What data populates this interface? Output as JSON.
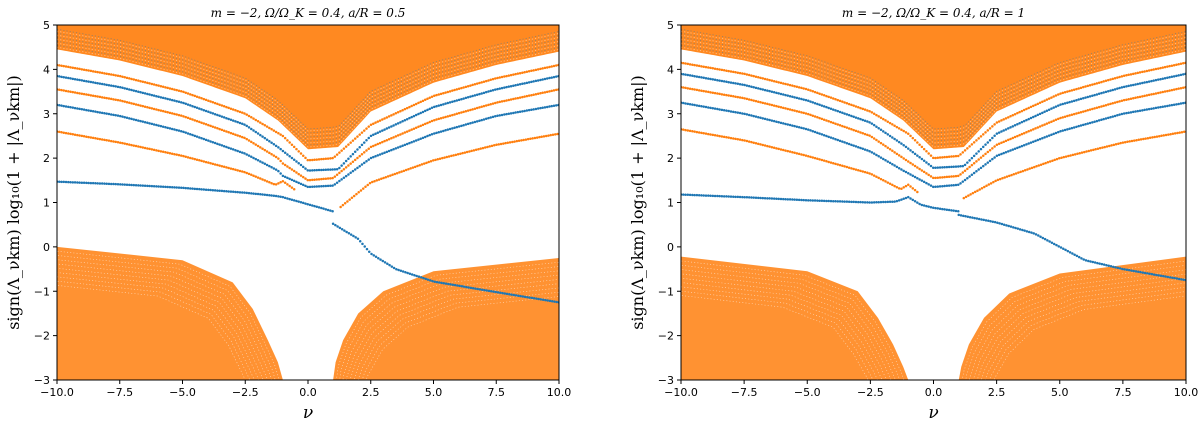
{
  "chart_data": [
    {
      "type": "scatter",
      "title": "m = −2,  Ω/Ω_K = 0.4,  a/R = 0.5",
      "xlabel": "ν",
      "ylabel": "sign(Λ_νkm) log₁₀(1 + |Λ_νkm|)",
      "xlim": [
        -10,
        10
      ],
      "ylim": [
        -3,
        5
      ],
      "xticks": [
        "−10.0",
        "−7.5",
        "−5.0",
        "−2.5",
        "0.0",
        "2.5",
        "5.0",
        "7.5",
        "10.0"
      ],
      "yticks": [
        "−3",
        "−2",
        "−1",
        "0",
        "1",
        "2",
        "3",
        "4",
        "5"
      ],
      "grid": false,
      "colors": {
        "blue": "#1f77b4",
        "orange": "#ff7f0e"
      },
      "series": [
        {
          "color": "#1f77b4",
          "points": [
            [
              -10,
              1.47
            ],
            [
              -7.5,
              1.41
            ],
            [
              -5,
              1.33
            ],
            [
              -2.5,
              1.22
            ],
            [
              -1.3,
              1.15
            ],
            [
              -1,
              1.12
            ],
            [
              0,
              0.96
            ],
            [
              1,
              0.8
            ]
          ]
        },
        {
          "color": "#1f77b4",
          "points": [
            [
              1,
              0.52
            ],
            [
              2,
              0.18
            ],
            [
              2.5,
              -0.15
            ],
            [
              3.5,
              -0.5
            ],
            [
              5,
              -0.78
            ],
            [
              7.5,
              -1.02
            ],
            [
              10,
              -1.25
            ]
          ]
        },
        {
          "color": "#ff7f0e",
          "points": [
            [
              -10,
              2.6
            ],
            [
              -7.5,
              2.35
            ],
            [
              -5,
              2.05
            ],
            [
              -2.5,
              1.68
            ],
            [
              -1.3,
              1.4
            ],
            [
              -1,
              1.48
            ],
            [
              -0.5,
              1.28
            ]
          ]
        },
        {
          "color": "#ff7f0e",
          "points": [
            [
              1.3,
              0.9
            ],
            [
              2.5,
              1.45
            ],
            [
              5,
              1.95
            ],
            [
              7.5,
              2.3
            ],
            [
              10,
              2.55
            ]
          ]
        },
        {
          "color": "#1f77b4",
          "points": [
            [
              -10,
              3.2
            ],
            [
              -7.5,
              2.95
            ],
            [
              -5,
              2.6
            ],
            [
              -2.5,
              2.1
            ],
            [
              -1.2,
              1.72
            ],
            [
              -1,
              1.6
            ],
            [
              0,
              1.35
            ],
            [
              1,
              1.38
            ],
            [
              2.5,
              2.0
            ],
            [
              5,
              2.55
            ],
            [
              7.5,
              2.95
            ],
            [
              10,
              3.2
            ]
          ]
        },
        {
          "color": "#ff7f0e",
          "points": [
            [
              -10,
              3.55
            ],
            [
              -7.5,
              3.3
            ],
            [
              -5,
              2.95
            ],
            [
              -2.5,
              2.45
            ],
            [
              -1.2,
              2.0
            ],
            [
              -1,
              1.88
            ],
            [
              0,
              1.5
            ],
            [
              1,
              1.55
            ],
            [
              2.5,
              2.25
            ],
            [
              5,
              2.85
            ],
            [
              7.5,
              3.25
            ],
            [
              10,
              3.55
            ]
          ]
        },
        {
          "color": "#1f77b4",
          "points": [
            [
              -10,
              3.85
            ],
            [
              -7.5,
              3.6
            ],
            [
              -5,
              3.25
            ],
            [
              -2.5,
              2.75
            ],
            [
              -1.2,
              2.25
            ],
            [
              0,
              1.72
            ],
            [
              1.2,
              1.75
            ],
            [
              2.5,
              2.5
            ],
            [
              5,
              3.15
            ],
            [
              7.5,
              3.55
            ],
            [
              10,
              3.85
            ]
          ]
        },
        {
          "color": "#ff7f0e",
          "points": [
            [
              -10,
              4.1
            ],
            [
              -7.5,
              3.85
            ],
            [
              -5,
              3.5
            ],
            [
              -2.5,
              3.0
            ],
            [
              -1,
              2.5
            ],
            [
              0,
              1.95
            ],
            [
              1,
              2.0
            ],
            [
              2.5,
              2.75
            ],
            [
              5,
              3.4
            ],
            [
              7.5,
              3.8
            ],
            [
              10,
              4.1
            ]
          ]
        }
      ],
      "negative_branch": {
        "color": "#ff7f0e",
        "left": {
          "x_start": -10,
          "top_curve": [
            [
              -10,
              0.0
            ],
            [
              -5,
              -0.3
            ],
            [
              -3,
              -0.8
            ],
            [
              -2.2,
              -1.4
            ],
            [
              -1.6,
              -2.1
            ],
            [
              -1.2,
              -2.6
            ],
            [
              -1.0,
              -3.0
            ]
          ]
        },
        "right": {
          "x_end": 10,
          "top_curve": [
            [
              10,
              -0.25
            ],
            [
              5,
              -0.55
            ],
            [
              3,
              -1.0
            ],
            [
              2.0,
              -1.5
            ],
            [
              1.4,
              -2.1
            ],
            [
              1.1,
              -2.6
            ],
            [
              1.0,
              -3.0
            ]
          ]
        }
      },
      "dense_region": {
        "color": "#ff7f0e",
        "note": "densely packed orange eigenvalue curves filling the upper region"
      }
    },
    {
      "type": "scatter",
      "title": "m = −2,  Ω/Ω_K = 0.4,  a/R = 1",
      "xlabel": "ν",
      "ylabel": "sign(Λ_νkm) log₁₀(1 + |Λ_νkm|)",
      "xlim": [
        -10,
        10
      ],
      "ylim": [
        -3,
        5
      ],
      "xticks": [
        "−10.0",
        "−7.5",
        "−5.0",
        "−2.5",
        "0.0",
        "2.5",
        "5.0",
        "7.5",
        "10.0"
      ],
      "yticks": [
        "−3",
        "−2",
        "−1",
        "0",
        "1",
        "2",
        "3",
        "4",
        "5"
      ],
      "grid": false,
      "colors": {
        "blue": "#1f77b4",
        "orange": "#ff7f0e"
      },
      "series": [
        {
          "color": "#1f77b4",
          "points": [
            [
              -10,
              1.18
            ],
            [
              -7.5,
              1.12
            ],
            [
              -5,
              1.05
            ],
            [
              -2.5,
              1.0
            ],
            [
              -1.5,
              1.02
            ],
            [
              -1,
              1.12
            ],
            [
              -0.5,
              0.95
            ],
            [
              0,
              0.88
            ],
            [
              1,
              0.8
            ]
          ]
        },
        {
          "color": "#1f77b4",
          "points": [
            [
              1,
              0.72
            ],
            [
              2.5,
              0.55
            ],
            [
              4,
              0.3
            ],
            [
              5,
              0.0
            ],
            [
              6,
              -0.3
            ],
            [
              7.5,
              -0.5
            ],
            [
              10,
              -0.75
            ]
          ]
        },
        {
          "color": "#ff7f0e",
          "points": [
            [
              -10,
              2.65
            ],
            [
              -7.5,
              2.4
            ],
            [
              -5,
              2.05
            ],
            [
              -2.5,
              1.65
            ],
            [
              -1.3,
              1.3
            ],
            [
              -1,
              1.4
            ],
            [
              -0.6,
              1.22
            ]
          ]
        },
        {
          "color": "#ff7f0e",
          "points": [
            [
              1.2,
              1.1
            ],
            [
              2.5,
              1.5
            ],
            [
              5,
              2.0
            ],
            [
              7.5,
              2.35
            ],
            [
              10,
              2.6
            ]
          ]
        },
        {
          "color": "#1f77b4",
          "points": [
            [
              -10,
              3.25
            ],
            [
              -7.5,
              3.0
            ],
            [
              -5,
              2.65
            ],
            [
              -2.5,
              2.15
            ],
            [
              -1.2,
              1.72
            ],
            [
              0,
              1.35
            ],
            [
              1,
              1.4
            ],
            [
              2.5,
              2.05
            ],
            [
              5,
              2.6
            ],
            [
              7.5,
              3.0
            ],
            [
              10,
              3.25
            ]
          ]
        },
        {
          "color": "#ff7f0e",
          "points": [
            [
              -10,
              3.6
            ],
            [
              -7.5,
              3.35
            ],
            [
              -5,
              3.0
            ],
            [
              -2.5,
              2.5
            ],
            [
              -1.2,
              2.0
            ],
            [
              0,
              1.55
            ],
            [
              1,
              1.6
            ],
            [
              2.5,
              2.3
            ],
            [
              5,
              2.9
            ],
            [
              7.5,
              3.3
            ],
            [
              10,
              3.6
            ]
          ]
        },
        {
          "color": "#1f77b4",
          "points": [
            [
              -10,
              3.9
            ],
            [
              -7.5,
              3.65
            ],
            [
              -5,
              3.3
            ],
            [
              -2.5,
              2.8
            ],
            [
              -1.2,
              2.3
            ],
            [
              0,
              1.78
            ],
            [
              1.2,
              1.82
            ],
            [
              2.5,
              2.55
            ],
            [
              5,
              3.2
            ],
            [
              7.5,
              3.6
            ],
            [
              10,
              3.9
            ]
          ]
        },
        {
          "color": "#ff7f0e",
          "points": [
            [
              -10,
              4.15
            ],
            [
              -7.5,
              3.9
            ],
            [
              -5,
              3.55
            ],
            [
              -2.5,
              3.05
            ],
            [
              -1,
              2.55
            ],
            [
              0,
              2.0
            ],
            [
              1,
              2.05
            ],
            [
              2.5,
              2.8
            ],
            [
              5,
              3.45
            ],
            [
              7.5,
              3.85
            ],
            [
              10,
              4.15
            ]
          ]
        }
      ],
      "negative_branch": {
        "color": "#ff7f0e",
        "left": {
          "x_start": -10,
          "top_curve": [
            [
              -10,
              -0.22
            ],
            [
              -5,
              -0.55
            ],
            [
              -3,
              -1.0
            ],
            [
              -2.2,
              -1.6
            ],
            [
              -1.6,
              -2.2
            ],
            [
              -1.2,
              -2.7
            ],
            [
              -1.0,
              -3.0
            ]
          ]
        },
        "right": {
          "x_end": 10,
          "top_curve": [
            [
              10,
              -0.22
            ],
            [
              5,
              -0.6
            ],
            [
              3,
              -1.05
            ],
            [
              2.0,
              -1.6
            ],
            [
              1.4,
              -2.2
            ],
            [
              1.1,
              -2.7
            ],
            [
              1.0,
              -3.0
            ]
          ]
        }
      },
      "dense_region": {
        "color": "#ff7f0e",
        "note": "densely packed orange eigenvalue curves filling the upper region"
      }
    }
  ]
}
